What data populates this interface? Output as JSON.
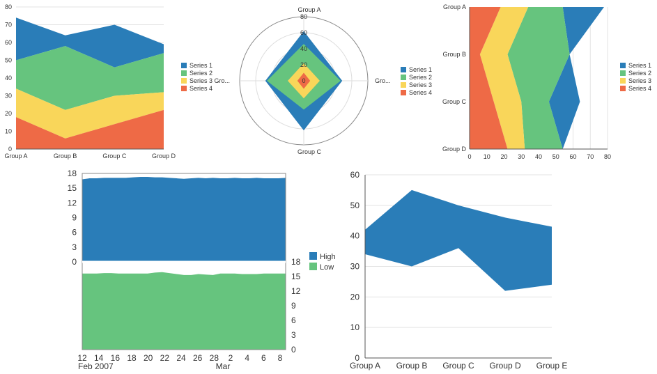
{
  "colors": {
    "series1": "#2a7db8",
    "series2": "#66c47e",
    "series3": "#f9d65a",
    "series4": "#ee6a46",
    "high": "#2a7db8",
    "low": "#66c47e",
    "grid": "#e3e3e3",
    "axis": "#555555"
  },
  "chart_data": [
    {
      "type": "area",
      "stacked": true,
      "categories": [
        "Group A",
        "Group B",
        "Group C",
        "Group D"
      ],
      "y_ticks": [
        0,
        10,
        20,
        30,
        40,
        50,
        60,
        70,
        80
      ],
      "ylim": [
        0,
        80
      ],
      "series": [
        {
          "name": "Series 1",
          "values": [
            24,
            6,
            24,
            5
          ]
        },
        {
          "name": "Series 2",
          "values": [
            16,
            36,
            16,
            22
          ]
        },
        {
          "name": "Series 3",
          "values": [
            16,
            16,
            16,
            10
          ]
        },
        {
          "name": "Series 4",
          "values": [
            18,
            6,
            14,
            22
          ]
        }
      ],
      "legend": "right"
    },
    {
      "type": "radar",
      "stacked": true,
      "axes": [
        "Group A",
        "Gro...",
        "Group C",
        "Gro..."
      ],
      "r_ticks": [
        0,
        20,
        40,
        60,
        80
      ],
      "rlim": [
        0,
        80
      ],
      "series": [
        {
          "name": "Series 1",
          "values": [
            16,
            2,
            26,
            2
          ]
        },
        {
          "name": "Series 2",
          "values": [
            24,
            26,
            14,
            26
          ]
        },
        {
          "name": "Series 3",
          "values": [
            12,
            12,
            12,
            12
          ]
        },
        {
          "name": "Series 4",
          "values": [
            10,
            8,
            10,
            8
          ]
        }
      ],
      "legend": "right"
    },
    {
      "type": "area",
      "orientation": "horizontal",
      "stacked": true,
      "categories": [
        "Group A",
        "Group B",
        "Group C",
        "Group D"
      ],
      "x_ticks": [
        0,
        10,
        20,
        30,
        40,
        50,
        60,
        70,
        80
      ],
      "xlim": [
        0,
        80
      ],
      "series": [
        {
          "name": "Series 1",
          "values": [
            24,
            0,
            18,
            0
          ]
        },
        {
          "name": "Series 2",
          "values": [
            20,
            36,
            16,
            22
          ]
        },
        {
          "name": "Series 3",
          "values": [
            16,
            16,
            16,
            10
          ]
        },
        {
          "name": "Series 4",
          "values": [
            18,
            6,
            14,
            22
          ]
        }
      ],
      "legend": "right"
    },
    {
      "type": "area",
      "panels": 2,
      "x_tick_labels": [
        "12",
        "14",
        "16",
        "18",
        "20",
        "22",
        "24",
        "26",
        "28",
        "2",
        "4",
        "6",
        "8"
      ],
      "x_sub_labels": [
        "Feb 2007",
        "Mar"
      ],
      "y_ticks": [
        0,
        3,
        6,
        9,
        12,
        15,
        18
      ],
      "ylim": [
        0,
        18
      ],
      "series": [
        {
          "name": "High",
          "values": [
            16.8,
            17.0,
            17.0,
            17.1,
            17.1,
            17.1,
            17.1,
            17.2,
            17.3,
            17.3,
            17.2,
            17.2,
            17.1,
            17.0,
            16.9,
            17.0,
            17.1,
            17.0,
            17.1,
            17.0,
            17.0,
            17.1,
            17.0,
            17.0,
            17.1,
            17.0,
            17.0,
            17.0,
            17.1
          ]
        },
        {
          "name": "Low",
          "values": [
            15.6,
            15.6,
            15.6,
            15.7,
            15.7,
            15.6,
            15.6,
            15.6,
            15.6,
            15.6,
            15.8,
            15.9,
            15.7,
            15.5,
            15.3,
            15.3,
            15.5,
            15.4,
            15.3,
            15.6,
            15.6,
            15.6,
            15.5,
            15.5,
            15.5,
            15.6,
            15.6,
            15.6,
            15.6
          ]
        }
      ],
      "legend": "right"
    },
    {
      "type": "area",
      "range": true,
      "categories": [
        "Group A",
        "Group B",
        "Group C",
        "Group D",
        "Group E"
      ],
      "y_ticks": [
        0,
        10,
        20,
        30,
        40,
        50,
        60
      ],
      "ylim": [
        0,
        60
      ],
      "low": [
        34,
        30,
        36,
        22,
        24
      ],
      "high": [
        42,
        55,
        50,
        46,
        43
      ]
    }
  ]
}
